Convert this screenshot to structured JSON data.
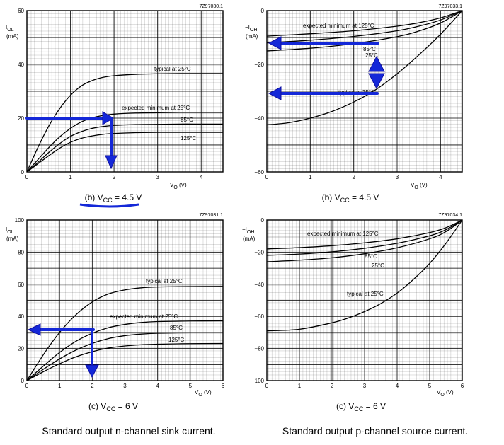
{
  "colors": {
    "arrow": "#1428d8",
    "curve": "#000000",
    "grid": "#000000"
  },
  "captions": {
    "left_footer": "Standard output n-channel sink current.",
    "right_footer": "Standard output p-channel source current."
  },
  "chart_data": [
    {
      "type": "line",
      "id": "tl",
      "code": "7Z97030.1",
      "ylabel_main": "I",
      "ylabel_sub": "OL",
      "yunit": "(mA)",
      "xlabel_main": "V",
      "xlabel_sub": "O",
      "xunit": "(V)",
      "caption_pre": "(b) V",
      "caption_sub": "CC",
      "caption_post": " = 4.5 V",
      "xlim": [
        0,
        4.5
      ],
      "ylim": [
        0,
        60
      ],
      "xticks": [
        0,
        1,
        2,
        3,
        4
      ],
      "yticks": [
        0,
        20,
        40,
        60
      ],
      "grid": true,
      "series": [
        {
          "label": "typical at 25°C",
          "x": [
            0,
            0.25,
            0.5,
            0.75,
            1.0,
            1.25,
            1.5,
            1.75,
            2.0,
            2.5,
            3.0,
            3.5,
            4.0,
            4.5
          ],
          "y": [
            0,
            9,
            17,
            23.5,
            28.5,
            32,
            34,
            35.2,
            35.8,
            36.3,
            36.5,
            36.6,
            36.6,
            36.6
          ]
        },
        {
          "label": "expected minimum at 25°C",
          "x": [
            0,
            0.25,
            0.5,
            0.75,
            1.0,
            1.25,
            1.5,
            1.75,
            2.0,
            2.5,
            3.0,
            3.5,
            4.0,
            4.5
          ],
          "y": [
            0,
            4.5,
            9,
            13,
            16.2,
            18.6,
            20.1,
            21,
            21.5,
            21.9,
            22,
            22.1,
            22.1,
            22.1
          ]
        },
        {
          "label": "85°C",
          "x": [
            0,
            0.25,
            0.5,
            0.75,
            1.0,
            1.25,
            1.5,
            1.75,
            2.0,
            2.5,
            3.0,
            3.5,
            4.0,
            4.5
          ],
          "y": [
            0,
            3.5,
            7.2,
            10.5,
            13.2,
            15,
            16.2,
            16.9,
            17.3,
            17.6,
            17.7,
            17.8,
            17.8,
            17.8
          ]
        },
        {
          "label": "125°C",
          "x": [
            0,
            0.25,
            0.5,
            0.75,
            1.0,
            1.25,
            1.5,
            1.75,
            2.0,
            2.5,
            3.0,
            3.5,
            4.0,
            4.5
          ],
          "y": [
            0,
            3,
            6,
            8.8,
            11,
            12.5,
            13.4,
            14,
            14.3,
            14.6,
            14.7,
            14.7,
            14.7,
            14.7
          ]
        }
      ],
      "labels": [
        "typical at 25°C",
        "expected minimum at 25°C",
        "85°C",
        "125°C"
      ]
    },
    {
      "type": "line",
      "id": "tr",
      "code": "7Z97033.1",
      "ylabel_main": "−I",
      "ylabel_sub": "OH",
      "yunit": "(mA)",
      "xlabel_main": "V",
      "xlabel_sub": "O",
      "xunit": "(V)",
      "caption_pre": "(b) V",
      "caption_sub": "CC",
      "caption_post": " = 4.5 V",
      "xlim": [
        0,
        4.5
      ],
      "ylim": [
        -60,
        0
      ],
      "xticks": [
        0,
        1,
        2,
        3,
        4
      ],
      "yticks": [
        0,
        -20,
        -40,
        -60
      ],
      "grid": true,
      "series": [
        {
          "label": "expected minimum at 125°C",
          "x": [
            0,
            1,
            2,
            3,
            3.5,
            4,
            4.5
          ],
          "y": [
            -9.5,
            -8.6,
            -7.5,
            -5.8,
            -4.5,
            -2.7,
            0
          ]
        },
        {
          "label": "85°C",
          "x": [
            0,
            1,
            2,
            3,
            3.5,
            4,
            4.5
          ],
          "y": [
            -12,
            -11,
            -9.6,
            -7.5,
            -5.8,
            -3.5,
            0
          ]
        },
        {
          "label": "25°C",
          "x": [
            0,
            1,
            2,
            3,
            3.5,
            4,
            4.5
          ],
          "y": [
            -15,
            -14,
            -12.3,
            -9.7,
            -7.6,
            -4.6,
            0
          ]
        },
        {
          "label": "typical at 25°C",
          "x": [
            0,
            0.5,
            1,
            1.5,
            2,
            2.5,
            3,
            3.5,
            4,
            4.5
          ],
          "y": [
            -42.5,
            -41.7,
            -40,
            -37.5,
            -34,
            -29.5,
            -23.5,
            -16.5,
            -8.8,
            0
          ]
        }
      ],
      "labels": [
        "expected minimum at 125°C",
        "85°C",
        "25°C",
        "typical at 25°C"
      ]
    },
    {
      "type": "line",
      "id": "bl",
      "code": "7Z97031.1",
      "ylabel_main": "I",
      "ylabel_sub": "OL",
      "yunit": "(mA)",
      "xlabel_main": "V",
      "xlabel_sub": "O",
      "xunit": "(V)",
      "caption_pre": "(c) V",
      "caption_sub": "CC",
      "caption_post": " = 6 V",
      "xlim": [
        0,
        6
      ],
      "ylim": [
        0,
        100
      ],
      "xticks": [
        0,
        1,
        2,
        3,
        4,
        5,
        6
      ],
      "yticks": [
        0,
        20,
        40,
        60,
        80,
        100
      ],
      "grid": true,
      "series": [
        {
          "label": "typical at 25°C",
          "x": [
            0,
            0.5,
            1,
            1.5,
            2,
            2.5,
            3,
            3.5,
            4,
            5,
            6
          ],
          "y": [
            0,
            16,
            30,
            41,
            49,
            54,
            56.5,
            57.8,
            58.3,
            58.6,
            58.7
          ]
        },
        {
          "label": "expected minimum at 25°C",
          "x": [
            0,
            0.5,
            1,
            1.5,
            2,
            2.5,
            3,
            3.5,
            4,
            5,
            6
          ],
          "y": [
            0,
            9,
            17.5,
            24.5,
            29.5,
            33,
            35,
            36.2,
            36.8,
            37.1,
            37.2
          ]
        },
        {
          "label": "85°C",
          "x": [
            0,
            0.5,
            1,
            1.5,
            2,
            2.5,
            3,
            3.5,
            4,
            5,
            6
          ],
          "y": [
            0,
            7,
            13.5,
            19,
            23.2,
            26.2,
            28,
            29,
            29.5,
            29.8,
            29.9
          ]
        },
        {
          "label": "125°C",
          "x": [
            0,
            0.5,
            1,
            1.5,
            2,
            2.5,
            3,
            3.5,
            4,
            5,
            6
          ],
          "y": [
            0,
            5.5,
            10.5,
            14.8,
            18,
            20.3,
            21.6,
            22.3,
            22.7,
            23,
            23.1
          ]
        }
      ],
      "labels": [
        "typical at 25°C",
        "expected minimum at 25°C",
        "85°C",
        "125°C"
      ]
    },
    {
      "type": "line",
      "id": "br",
      "code": "7Z97034.1",
      "ylabel_main": "−I",
      "ylabel_sub": "OH",
      "yunit": "(mA)",
      "xlabel_main": "V",
      "xlabel_sub": "O",
      "xunit": "(V)",
      "caption_pre": "(c) V",
      "caption_sub": "CC",
      "caption_post": " = 6 V",
      "xlim": [
        0,
        6
      ],
      "ylim": [
        -100,
        0
      ],
      "xticks": [
        0,
        1,
        2,
        3,
        4,
        5,
        6
      ],
      "yticks": [
        0,
        -20,
        -40,
        -60,
        -80,
        -100
      ],
      "grid": true,
      "series": [
        {
          "label": "expected minimum at 125°C",
          "x": [
            0,
            1,
            2,
            3,
            4,
            5,
            5.5,
            6
          ],
          "y": [
            -18,
            -17.2,
            -16,
            -14.2,
            -11.7,
            -7.8,
            -4.8,
            0
          ]
        },
        {
          "label": "85°C",
          "x": [
            0,
            1,
            2,
            3,
            4,
            5,
            5.5,
            6
          ],
          "y": [
            -22,
            -21.2,
            -19.8,
            -17.6,
            -14.5,
            -9.8,
            -6,
            0
          ]
        },
        {
          "label": "25°C",
          "x": [
            0,
            1,
            2,
            3,
            4,
            5,
            5.5,
            6
          ],
          "y": [
            -26,
            -25,
            -23.5,
            -21,
            -17.3,
            -11.7,
            -7.2,
            0
          ]
        },
        {
          "label": "typical at 25°C",
          "x": [
            0,
            1,
            2,
            2.5,
            3,
            3.5,
            4,
            4.5,
            5,
            5.5,
            6
          ],
          "y": [
            -69,
            -68,
            -64,
            -61,
            -57,
            -52,
            -45.5,
            -37,
            -27,
            -14.5,
            0
          ]
        }
      ],
      "labels": [
        "expected minimum at 125°C",
        "85°C",
        "25°C",
        "typical at 25°C"
      ]
    }
  ]
}
